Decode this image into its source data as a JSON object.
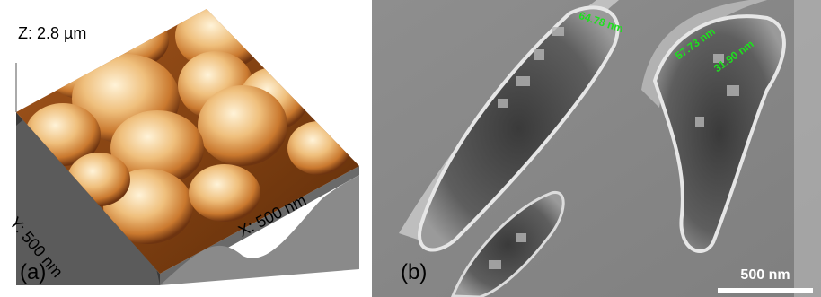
{
  "panel_a": {
    "tag": "(a)",
    "z_label": "Z: 2.8 µm",
    "y_label": "Y: 500 nm",
    "x_label": "X: 500 nm"
  },
  "panel_b": {
    "tag": "(b)",
    "measurements": [
      "64.78 nm",
      "57.73 nm",
      "31.90 nm"
    ],
    "scale_bar": "500 nm"
  },
  "colors": {
    "afm_light": "#fde9c4",
    "afm_mid": "#e3a35a",
    "afm_dark": "#7a3c10",
    "sem_gray": "#8a8a8a",
    "measure_green": "#1ee01e"
  }
}
